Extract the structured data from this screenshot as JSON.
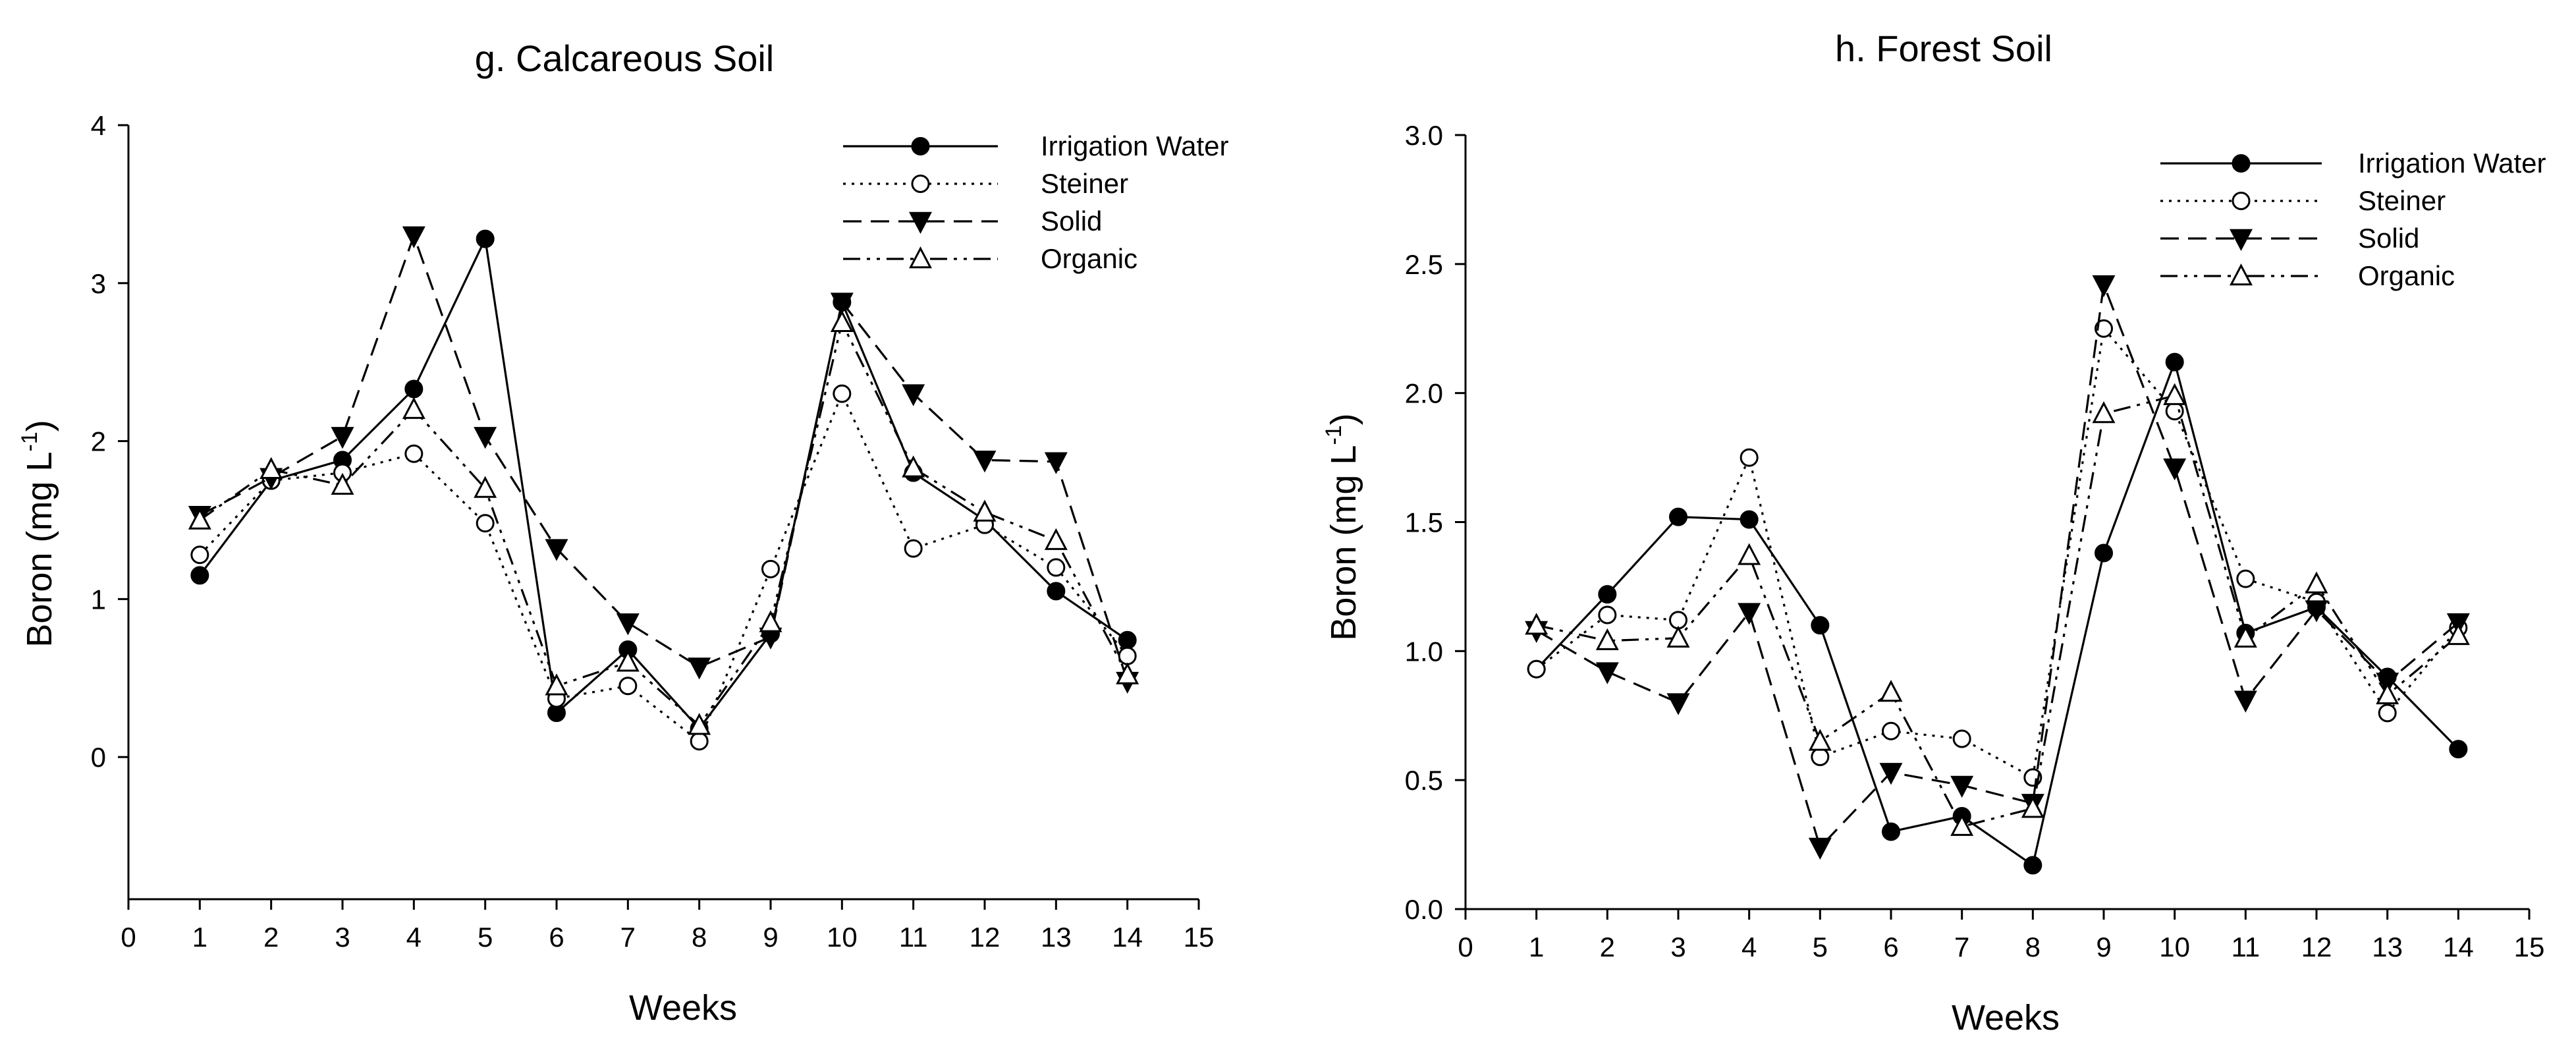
{
  "chart_data": [
    {
      "type": "line",
      "title": "g. Calcareous Soil",
      "xlabel": "Weeks",
      "ylabel": "Boron (mg L",
      "ylabel_sup": "-1",
      "ylabel_end": ")",
      "xlim": [
        0,
        15
      ],
      "ylim": [
        -0.9,
        4
      ],
      "xticks": [
        0,
        1,
        2,
        3,
        4,
        5,
        6,
        7,
        8,
        9,
        10,
        11,
        12,
        13,
        14,
        15
      ],
      "xtick_labels": [
        "0",
        "1",
        "2",
        "3",
        "4",
        "5",
        "6",
        "7",
        "8",
        "9",
        "10",
        "11",
        "12",
        "13",
        "14",
        "15"
      ],
      "yticks": [
        0,
        1,
        2,
        3,
        4
      ],
      "ytick_labels": [
        "0",
        "1",
        "2",
        "3",
        "4"
      ],
      "legend_position": "top-right",
      "x": [
        1,
        2,
        3,
        4,
        5,
        6,
        7,
        8,
        9,
        10,
        11,
        12,
        13,
        14
      ],
      "series": [
        {
          "name": "Irrigation Water",
          "marker": "filled-circle",
          "dash": "solid",
          "values": [
            1.15,
            1.75,
            1.88,
            2.33,
            3.28,
            0.28,
            0.68,
            0.18,
            0.78,
            2.88,
            1.8,
            1.5,
            1.05,
            0.74
          ]
        },
        {
          "name": "Steiner",
          "marker": "open-circle",
          "dash": "dotted",
          "values": [
            1.28,
            1.75,
            1.8,
            1.92,
            1.48,
            0.37,
            0.45,
            0.1,
            1.19,
            2.3,
            1.32,
            1.47,
            1.2,
            0.64
          ]
        },
        {
          "name": "Solid",
          "marker": "filled-triangle-down",
          "dash": "dashed",
          "values": [
            1.53,
            1.77,
            2.03,
            3.3,
            2.03,
            1.32,
            0.85,
            0.57,
            0.76,
            2.88,
            2.3,
            1.88,
            1.87,
            0.48
          ]
        },
        {
          "name": "Organic",
          "marker": "open-triangle-up",
          "dash": "dashdot",
          "values": [
            1.5,
            1.82,
            1.72,
            2.2,
            1.7,
            0.45,
            0.6,
            0.2,
            0.85,
            2.75,
            1.83,
            1.55,
            1.37,
            0.52
          ]
        }
      ]
    },
    {
      "type": "line",
      "title": "h. Forest Soil",
      "xlabel": "Weeks",
      "ylabel": "Boron (mg L",
      "ylabel_sup": "-1",
      "ylabel_end": ")",
      "xlim": [
        0,
        15
      ],
      "ylim": [
        0,
        3.0
      ],
      "xticks": [
        0,
        1,
        2,
        3,
        4,
        5,
        6,
        7,
        8,
        9,
        10,
        11,
        12,
        13,
        14,
        15
      ],
      "xtick_labels": [
        "0",
        "1",
        "2",
        "3",
        "4",
        "5",
        "6",
        "7",
        "8",
        "9",
        "10",
        "11",
        "12",
        "13",
        "14",
        "15"
      ],
      "yticks": [
        0,
        0.5,
        1.0,
        1.5,
        2.0,
        2.5,
        3.0
      ],
      "ytick_labels": [
        "0.0",
        "0.5",
        "1.0",
        "1.5",
        "2.0",
        "2.5",
        "3.0"
      ],
      "legend_position": "top-right",
      "x": [
        1,
        2,
        3,
        4,
        5,
        6,
        7,
        8,
        9,
        10,
        11,
        12,
        13,
        14
      ],
      "series": [
        {
          "name": "Irrigation Water",
          "marker": "filled-circle",
          "dash": "solid",
          "values": [
            0.93,
            1.22,
            1.52,
            1.51,
            1.1,
            0.3,
            0.36,
            0.17,
            1.38,
            2.12,
            1.07,
            1.17,
            0.9,
            0.62
          ]
        },
        {
          "name": "Steiner",
          "marker": "open-circle",
          "dash": "dotted",
          "values": [
            0.93,
            1.14,
            1.12,
            1.75,
            0.59,
            0.69,
            0.66,
            0.51,
            2.25,
            1.93,
            1.28,
            1.19,
            0.76,
            1.09
          ]
        },
        {
          "name": "Solid",
          "marker": "filled-triangle-down",
          "dash": "dashed",
          "values": [
            1.08,
            0.92,
            0.8,
            1.15,
            0.24,
            0.53,
            0.48,
            0.41,
            2.42,
            1.71,
            0.81,
            1.16,
            0.88,
            1.11
          ]
        },
        {
          "name": "Organic",
          "marker": "open-triangle-up",
          "dash": "dashdot",
          "values": [
            1.1,
            1.04,
            1.05,
            1.37,
            0.65,
            0.84,
            0.32,
            0.39,
            1.92,
            1.99,
            1.05,
            1.26,
            0.83,
            1.06
          ]
        }
      ]
    }
  ]
}
